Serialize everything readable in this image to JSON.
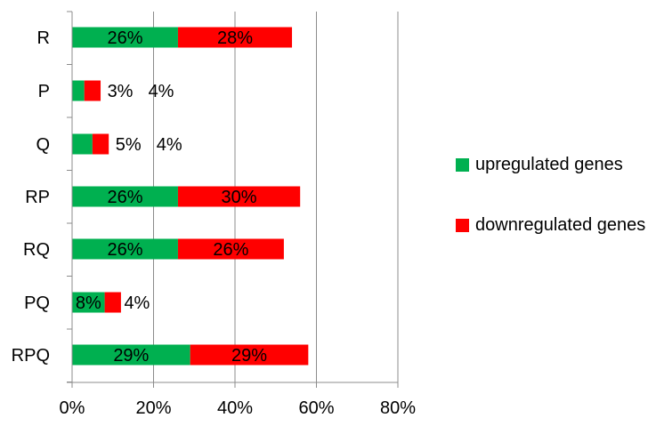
{
  "chart_data": {
    "type": "bar",
    "orientation": "horizontal",
    "stacked": true,
    "categories": [
      "R",
      "P",
      "Q",
      "RP",
      "RQ",
      "PQ",
      "RPQ"
    ],
    "series": [
      {
        "name": "upregulated genes",
        "color": "#00B050",
        "values": [
          26,
          3,
          5,
          26,
          26,
          8,
          29
        ],
        "labels": [
          "26%",
          "3%",
          "5%",
          "26%",
          "26%",
          "8%",
          "29%"
        ]
      },
      {
        "name": "downregulated genes",
        "color": "#FF0000",
        "values": [
          28,
          4,
          4,
          30,
          26,
          4,
          29
        ],
        "labels": [
          "28%",
          "4%",
          "4%",
          "30%",
          "26%",
          "4%",
          "29%"
        ]
      }
    ],
    "xlim": [
      0,
      80
    ],
    "x_ticks": [
      "0%",
      "20%",
      "40%",
      "60%",
      "80%"
    ],
    "grid": "vertical",
    "legend_position": "right"
  }
}
